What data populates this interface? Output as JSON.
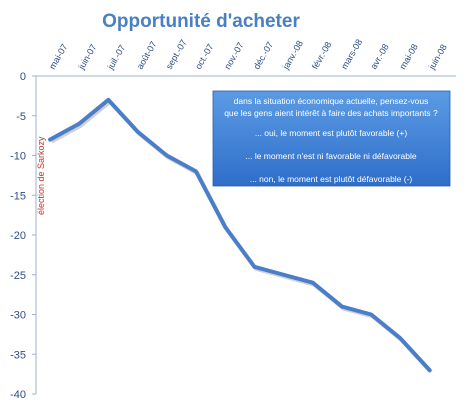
{
  "chart_data": {
    "type": "line",
    "title": "Opportunité d'acheter",
    "xlabel": "",
    "ylabel": "",
    "categories": [
      "mai-07",
      "juin-07",
      "juil.-07",
      "août-07",
      "sept.-07",
      "oct.-07",
      "nov.-07",
      "déc.-07",
      "janv.-08",
      "févr.-08",
      "mars-08",
      "avr.-08",
      "mai-08",
      "juin-08"
    ],
    "series": [
      {
        "values": [
          -8,
          -6,
          -3,
          -7,
          -10,
          -12,
          -19,
          -24,
          -25,
          -26,
          -29,
          -30,
          -33,
          -37
        ]
      }
    ],
    "yticks": [
      "0",
      "-5",
      "-10",
      "-15",
      "-20",
      "-25",
      "-30",
      "-35",
      "-40"
    ],
    "ylim": [
      -40,
      0
    ],
    "grid": false,
    "line_color": "#4a7ec8",
    "annotation": "élection de Sarkozy",
    "question_box": {
      "question_line1": "dans la situation économique actuelle, pensez-vous",
      "question_line2": "que les gens aient intérêt à faire des achats importants ?",
      "option1": "... oui, le moment est plutôt favorable (+)",
      "option2": "... le moment n'est ni favorable ni défavorable",
      "option3": "... non, le moment est plutôt défavorable (-)"
    }
  }
}
